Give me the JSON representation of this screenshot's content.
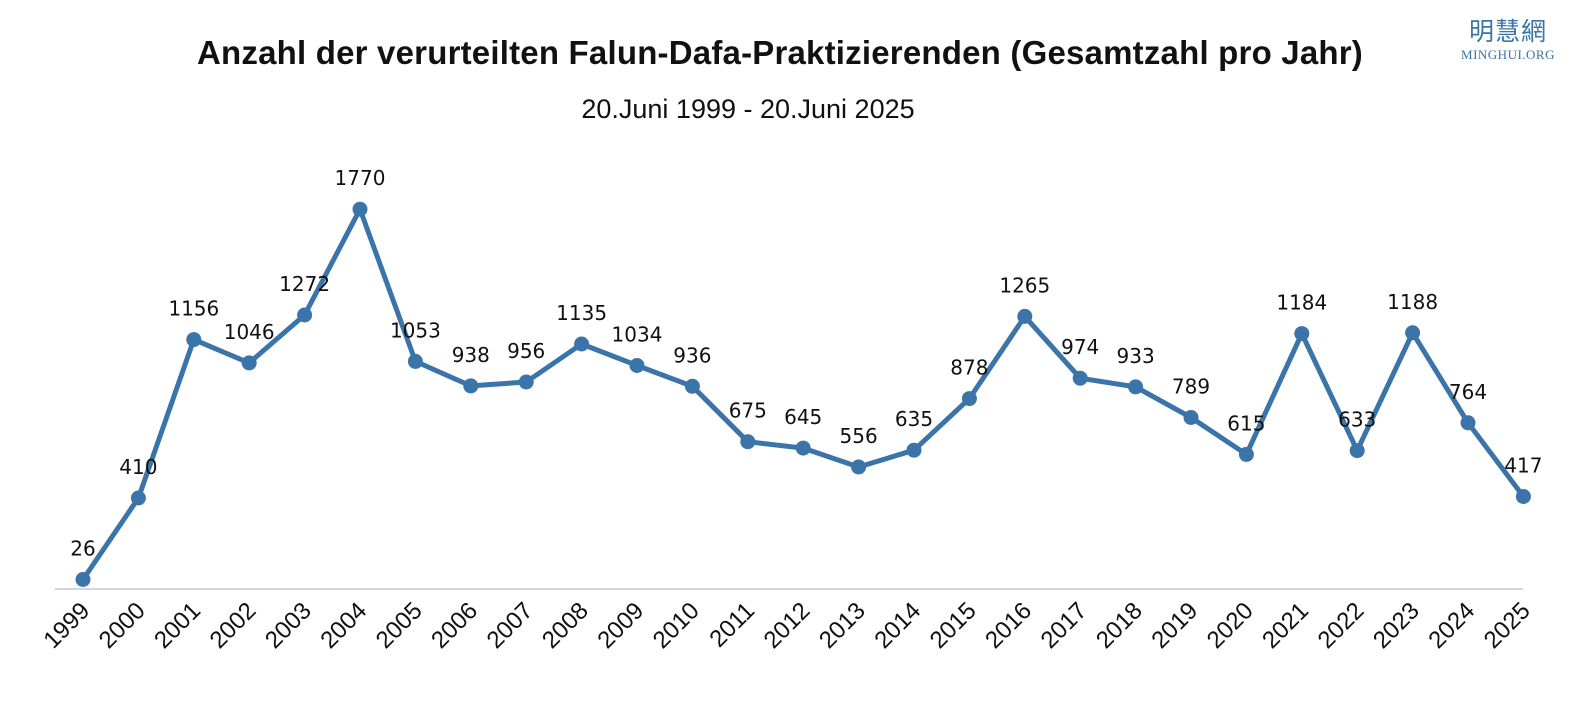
{
  "title": "Anzahl der verurteilten Falun-Dafa-Praktizierenden (Gesamtzahl pro Jahr)",
  "subtitle": "20.Juni 1999 - 20.Juni 2025",
  "logo": {
    "cjk": "明慧網",
    "latin": "MINGHUI.ORG"
  },
  "colors": {
    "series": "#3b74a8",
    "label_halo": "#c9d8e8",
    "axis": "#d6d6d6",
    "text": "#111111"
  },
  "chart_data": {
    "type": "line",
    "title": "Anzahl der verurteilten Falun-Dafa-Praktizierenden (Gesamtzahl pro Jahr)",
    "subtitle": "20.Juni 1999 - 20.Juni 2025",
    "xlabel": "",
    "ylabel": "",
    "ylim": [
      0,
      1850
    ],
    "grid": false,
    "legend": "none",
    "x": [
      "1999",
      "2000",
      "2001",
      "2002",
      "2003",
      "2004",
      "2005",
      "2006",
      "2007",
      "2008",
      "2009",
      "2010",
      "2011",
      "2012",
      "2013",
      "2014",
      "2015",
      "2016",
      "2017",
      "2018",
      "2019",
      "2020",
      "2021",
      "2022",
      "2023",
      "2024",
      "2025"
    ],
    "series": [
      {
        "name": "",
        "values": [
          26,
          410,
          1156,
          1046,
          1272,
          1770,
          1053,
          938,
          956,
          1135,
          1034,
          936,
          675,
          645,
          556,
          635,
          878,
          1265,
          974,
          933,
          789,
          615,
          1184,
          633,
          1188,
          764,
          417
        ]
      }
    ]
  }
}
